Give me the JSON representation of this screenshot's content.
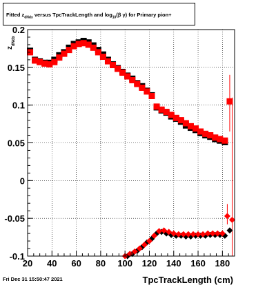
{
  "title": {
    "part1": "Fitted  z",
    "sub1": "dNdx",
    "part2": "  versus TpcTrackLength and log",
    "sub2": "10",
    "part3": "(β  γ) for Primary pion+"
  },
  "timestamp": "Fri Dec 31 15:50:47 2021",
  "chart_data": {
    "type": "scatter",
    "title": "Fitted z_dNdx versus TpcTrackLength and log10(β γ) for Primary pion+",
    "xlabel": "TpcTrackLength (cm)",
    "ylabel": "z_dNdx",
    "xlim": [
      20,
      190
    ],
    "ylim": [
      -0.1,
      0.2
    ],
    "grid": true,
    "x_ticks": [
      20,
      40,
      60,
      80,
      100,
      120,
      140,
      160,
      180
    ],
    "y_ticks": [
      -0.1,
      -0.05,
      0,
      0.05,
      0.1,
      0.15,
      0.2
    ],
    "x_tick_labels": [
      "20",
      "40",
      "60",
      "80",
      "100",
      "120",
      "140",
      "160",
      "180"
    ],
    "y_tick_labels": [
      "-0.1",
      "-0.05",
      "0",
      "0.05",
      "0.1",
      "0.15",
      "0.2"
    ],
    "series": [
      {
        "marker": "square",
        "color": "#000000",
        "x": [
          22,
          26,
          30,
          34,
          38,
          42,
          46,
          50,
          54,
          58,
          62,
          66,
          70,
          74,
          78,
          82,
          86,
          90,
          94,
          98,
          102,
          106,
          110,
          114,
          118,
          122,
          126,
          130,
          134,
          138,
          142,
          146,
          150,
          154,
          158,
          162,
          166,
          170,
          174,
          178,
          182
        ],
        "y": [
          0.172,
          0.16,
          0.158,
          0.156,
          0.156,
          0.16,
          0.166,
          0.17,
          0.176,
          0.181,
          0.183,
          0.185,
          0.183,
          0.179,
          0.173,
          0.167,
          0.16,
          0.154,
          0.149,
          0.144,
          0.139,
          0.135,
          0.129,
          0.125,
          0.119,
          0.113,
          0.097,
          0.093,
          0.09,
          0.085,
          0.082,
          0.078,
          0.073,
          0.07,
          0.067,
          0.063,
          0.06,
          0.058,
          0.055,
          0.053,
          0.051
        ]
      },
      {
        "marker": "square",
        "color": "#ff0000",
        "x": [
          22,
          26,
          30,
          34,
          38,
          42,
          46,
          50,
          54,
          58,
          62,
          66,
          70,
          74,
          78,
          82,
          86,
          90,
          94,
          98,
          102,
          106,
          110,
          114,
          118,
          122,
          126,
          130,
          134,
          138,
          142,
          146,
          150,
          154,
          158,
          162,
          166,
          170,
          174,
          178,
          182,
          186
        ],
        "y": [
          0.17,
          0.159,
          0.157,
          0.155,
          0.154,
          0.157,
          0.163,
          0.168,
          0.173,
          0.178,
          0.181,
          0.182,
          0.18,
          0.176,
          0.17,
          0.164,
          0.158,
          0.153,
          0.148,
          0.143,
          0.138,
          0.133,
          0.128,
          0.123,
          0.118,
          0.112,
          0.098,
          0.094,
          0.091,
          0.087,
          0.083,
          0.08,
          0.076,
          0.072,
          0.069,
          0.065,
          0.062,
          0.06,
          0.057,
          0.055,
          0.053,
          0.105
        ],
        "err_high": [
          null,
          null,
          null,
          null,
          null,
          null,
          null,
          null,
          null,
          null,
          null,
          null,
          null,
          null,
          null,
          null,
          null,
          null,
          null,
          null,
          null,
          null,
          null,
          null,
          null,
          null,
          null,
          null,
          null,
          null,
          null,
          null,
          null,
          null,
          null,
          null,
          null,
          null,
          null,
          null,
          null,
          0.14
        ],
        "err_low": [
          null,
          null,
          null,
          null,
          null,
          null,
          null,
          null,
          null,
          null,
          null,
          null,
          null,
          null,
          null,
          null,
          null,
          null,
          null,
          null,
          null,
          null,
          null,
          null,
          null,
          null,
          null,
          null,
          null,
          null,
          null,
          null,
          null,
          null,
          null,
          null,
          null,
          null,
          null,
          null,
          null,
          0.065
        ]
      },
      {
        "marker": "diamond",
        "color": "#000000",
        "x": [
          102,
          106,
          110,
          114,
          118,
          122,
          126,
          130,
          134,
          138,
          142,
          146,
          150,
          154,
          158,
          162,
          166,
          170,
          174,
          178,
          182,
          186
        ],
        "y": [
          -0.1,
          -0.097,
          -0.093,
          -0.088,
          -0.082,
          -0.077,
          -0.07,
          -0.068,
          -0.07,
          -0.072,
          -0.073,
          -0.073,
          -0.074,
          -0.074,
          -0.073,
          -0.073,
          -0.073,
          -0.072,
          -0.072,
          -0.072,
          -0.073,
          -0.066
        ]
      },
      {
        "marker": "diamond",
        "color": "#ff0000",
        "x": [
          100,
          104,
          108,
          112,
          116,
          120,
          124,
          128,
          132,
          136,
          140,
          144,
          148,
          152,
          156,
          160,
          164,
          168,
          172,
          176,
          180,
          184,
          188
        ],
        "y": [
          -0.1,
          -0.097,
          -0.094,
          -0.09,
          -0.085,
          -0.08,
          -0.073,
          -0.067,
          -0.066,
          -0.068,
          -0.07,
          -0.071,
          -0.071,
          -0.071,
          -0.071,
          -0.071,
          -0.071,
          -0.07,
          -0.07,
          -0.07,
          -0.07,
          -0.047,
          -0.052
        ],
        "err_high": [
          null,
          null,
          null,
          null,
          null,
          null,
          null,
          null,
          null,
          null,
          null,
          null,
          null,
          null,
          null,
          null,
          null,
          null,
          null,
          null,
          null,
          -0.031,
          0.11
        ],
        "err_low": [
          null,
          null,
          null,
          null,
          null,
          null,
          null,
          null,
          null,
          null,
          null,
          null,
          null,
          null,
          null,
          null,
          null,
          null,
          null,
          null,
          null,
          -0.058,
          -0.1
        ]
      }
    ]
  }
}
